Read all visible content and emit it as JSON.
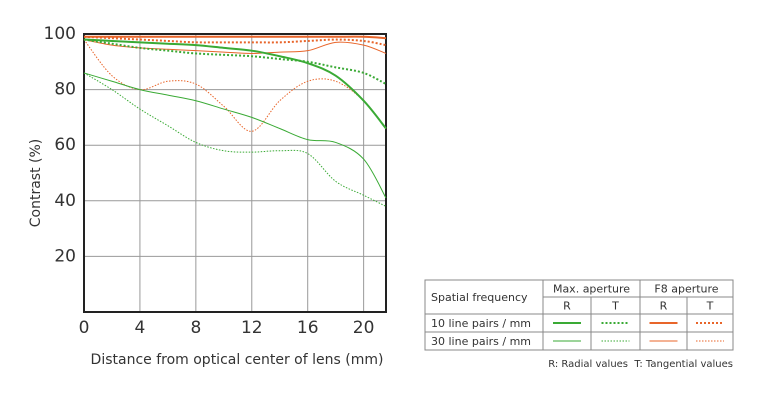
{
  "chart_data": {
    "type": "line",
    "xlabel": "Distance from optical center of lens (mm)",
    "ylabel": "Contrast (%)",
    "x": [
      0,
      2,
      4,
      6,
      8,
      10,
      12,
      14,
      16,
      18,
      20,
      21.6
    ],
    "xlim": [
      0,
      21.6
    ],
    "ylim": [
      0,
      100
    ],
    "xticks": [
      0,
      4,
      8,
      12,
      16,
      20
    ],
    "yticks": [
      20,
      40,
      60,
      80,
      100
    ],
    "grid": true,
    "series": [
      {
        "color": "#3aaa35",
        "width": 2,
        "dash": "solid",
        "values": [
          98,
          97.5,
          97,
          96.5,
          96,
          95,
          94,
          92,
          89.5,
          85,
          76,
          66
        ]
      },
      {
        "color": "#3aaa35",
        "width": 2,
        "dash": "dotted",
        "values": [
          98,
          96.5,
          95,
          94,
          93,
          92.5,
          92,
          91,
          90,
          88,
          86,
          82
        ]
      },
      {
        "color": "#e8652a",
        "width": 2,
        "dash": "solid",
        "values": [
          99,
          99,
          99,
          99,
          99,
          99,
          99,
          99,
          99,
          99,
          99,
          98.5
        ]
      },
      {
        "color": "#e8652a",
        "width": 2,
        "dash": "dotted",
        "values": [
          99,
          98.5,
          98,
          97.5,
          97,
          97,
          97,
          97,
          97.5,
          98,
          97.5,
          96
        ]
      },
      {
        "color": "#3aaa35",
        "width": 1,
        "dash": "solid",
        "values": [
          86,
          83,
          80,
          78,
          76,
          73,
          70,
          66,
          62,
          61,
          55,
          41
        ]
      },
      {
        "color": "#3aaa35",
        "width": 1,
        "dash": "dotted",
        "values": [
          86,
          80,
          73,
          67,
          61,
          58,
          57.5,
          58,
          57,
          47,
          42,
          38
        ]
      },
      {
        "color": "#e8652a",
        "width": 1,
        "dash": "solid",
        "values": [
          98,
          96,
          95,
          94.5,
          94,
          93.5,
          93,
          93.5,
          94,
          97,
          96,
          93
        ]
      },
      {
        "color": "#e8652a",
        "width": 1,
        "dash": "dotted",
        "values": [
          98,
          85,
          80,
          83,
          82,
          74,
          65,
          76,
          83,
          83,
          76,
          66
        ]
      }
    ]
  },
  "legend_table": {
    "corner_header": "Spatial frequency",
    "apertures": [
      "Max. aperture",
      "F8 aperture"
    ],
    "subheads": [
      "R",
      "T",
      "R",
      "T"
    ],
    "rows": [
      "10 line pairs / mm",
      "30 line pairs / mm"
    ],
    "note": "R: Radial values  T: Tangential values"
  }
}
